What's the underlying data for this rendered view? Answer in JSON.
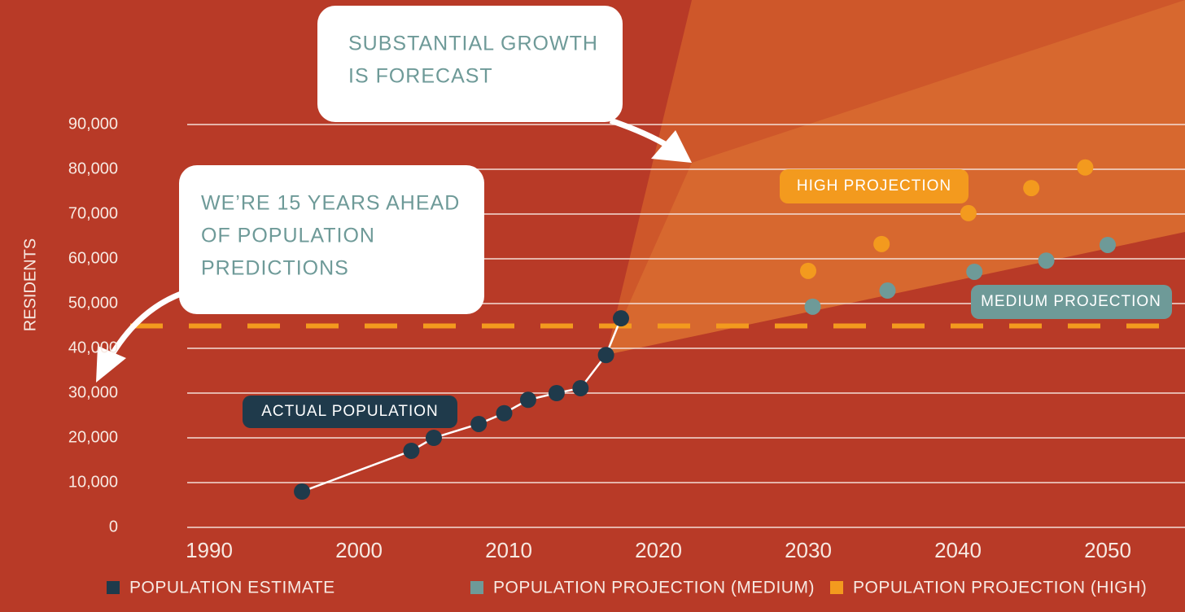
{
  "chart_data": {
    "type": "scatter",
    "y_axis_label": "RESIDENTS",
    "xlim": [
      1988.5,
      2055.2
    ],
    "xticks": [
      1990,
      2000,
      2010,
      2020,
      2030,
      2040,
      2050
    ],
    "ylim": [
      0,
      90000
    ],
    "yticks": [
      0,
      {
        "value": 10000,
        "label": "10,000"
      },
      {
        "value": 20000,
        "label": "20,000"
      },
      {
        "value": 30000,
        "label": "30,000"
      },
      {
        "value": 40000,
        "label": "40,000"
      },
      {
        "value": 50000,
        "label": "50,000"
      },
      {
        "value": 60000,
        "label": "60,000"
      },
      {
        "value": 70000,
        "label": "70,000"
      },
      {
        "value": 80000,
        "label": "80,000"
      },
      {
        "value": {
          "value": 90000
        },
        "label": "90,000"
      }
    ],
    "grid": true,
    "reference_line": {
      "value": 45000,
      "color": "#f39a1e"
    },
    "series": [
      {
        "name": "POPULATION ESTIMATE",
        "color": "#1f3a4b",
        "line": true,
        "x": [
          1996.2,
          2003.5,
          2005,
          2008,
          2009.7,
          2011.3,
          2013.2,
          2014.8,
          2016.5,
          2017.5
        ],
        "values": [
          8000,
          17100,
          20000,
          23100,
          25500,
          28500,
          30000,
          31100,
          38500,
          46700
        ]
      },
      {
        "name": "POPULATION PROJECTION (MEDIUM)",
        "color": "#6e9a98",
        "x": [
          2030.3,
          2035.3,
          2041.1,
          2045.9,
          2050
        ],
        "values": [
          49300,
          52900,
          57100,
          59600,
          63100
        ]
      },
      {
        "name": "POPULATION PROJECTION (HIGH)",
        "color": "#f39a1e",
        "x": [
          2030,
          2034.9,
          2040.7,
          2044.9,
          2048.5
        ],
        "values": [
          57300,
          63300,
          70200,
          75800,
          80400
        ]
      }
    ],
    "annotations": [
      {
        "lines": [
          "SUBSTANTIAL GROWTH",
          "IS FORECAST"
        ]
      },
      {
        "lines": [
          "WE’RE 15 YEARS AHEAD",
          "OF POPULATION",
          "PREDICTIONS"
        ]
      }
    ],
    "series_labels": [
      "ACTUAL POPULATION",
      "MEDIUM PROJECTION",
      "HIGH PROJECTION"
    ]
  }
}
